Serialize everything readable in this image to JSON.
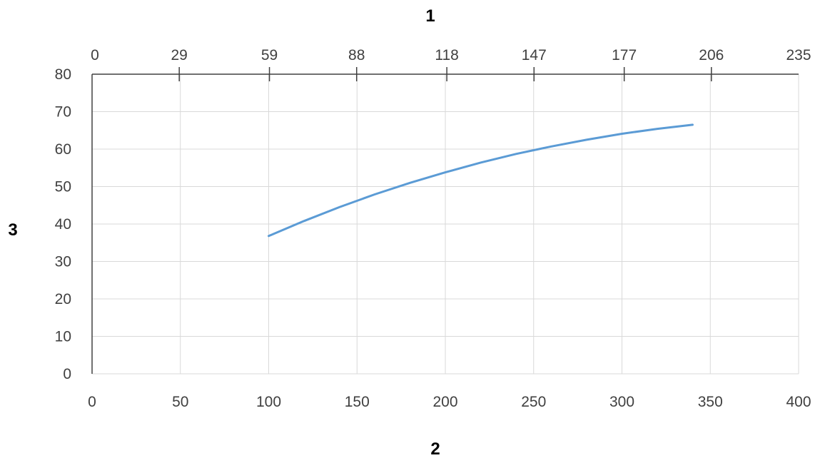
{
  "chart_data": {
    "type": "line",
    "title": "",
    "xlabel": "2",
    "ylabel": "3",
    "x2label": "1",
    "xlim": [
      0,
      400
    ],
    "ylim": [
      0,
      80
    ],
    "x2lim": [
      0,
      235
    ],
    "x_ticks": [
      "0",
      "50",
      "100",
      "150",
      "200",
      "250",
      "300",
      "350",
      "400"
    ],
    "y_ticks": [
      "0",
      "10",
      "20",
      "30",
      "40",
      "50",
      "60",
      "70",
      "80"
    ],
    "x2_ticks": [
      "0",
      "29",
      "59",
      "88",
      "118",
      "147",
      "177",
      "206",
      "235"
    ],
    "grid": true,
    "legend": "none",
    "series": [
      {
        "color": "#5b9bd5",
        "x": [
          100,
          120,
          140,
          160,
          180,
          200,
          220,
          240,
          260,
          280,
          300,
          320,
          340
        ],
        "y": [
          36.8,
          40.8,
          44.5,
          47.9,
          51.0,
          53.8,
          56.4,
          58.7,
          60.7,
          62.5,
          64.1,
          65.4,
          66.5
        ]
      }
    ]
  }
}
